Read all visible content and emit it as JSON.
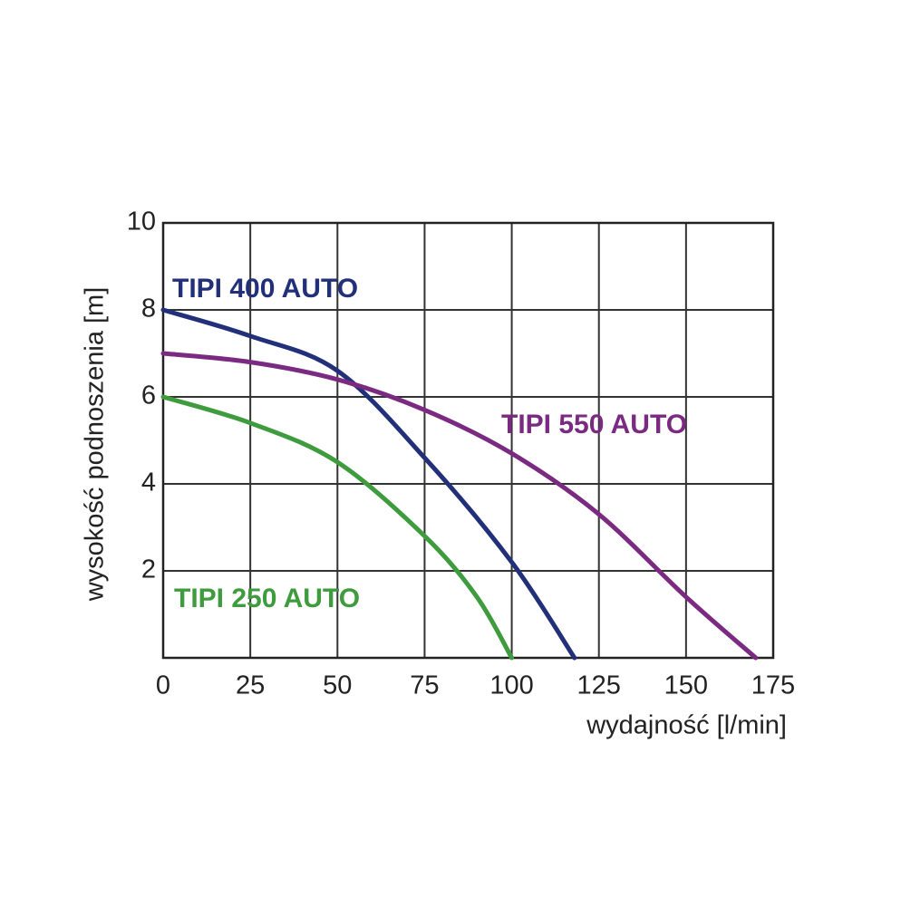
{
  "chart_data": {
    "type": "line",
    "xlabel": "wydajność  [l/min]",
    "ylabel": "wysokość podnoszenia [m]",
    "xlim": [
      0,
      175
    ],
    "xticks": [
      0,
      25,
      50,
      75,
      100,
      125,
      150,
      175
    ],
    "ylim": [
      0,
      10
    ],
    "yticks": [
      2,
      4,
      6,
      8,
      10
    ],
    "grid": true,
    "series": [
      {
        "name": "TIPI 400 AUTO",
        "color": "#22307a",
        "x": [
          0,
          25,
          50,
          75,
          100,
          118
        ],
        "values": [
          8,
          7.4,
          6.6,
          4.6,
          2.2,
          0
        ]
      },
      {
        "name": "TIPI 550 AUTO",
        "color": "#7b2a82",
        "x": [
          0,
          25,
          50,
          75,
          100,
          125,
          150,
          170
        ],
        "values": [
          7,
          6.8,
          6.4,
          5.7,
          4.7,
          3.3,
          1.4,
          0
        ]
      },
      {
        "name": "TIPI 250 AUTO",
        "color": "#3e9b3e",
        "x": [
          0,
          25,
          50,
          75,
          90,
          100
        ],
        "values": [
          6,
          5.4,
          4.5,
          2.8,
          1.4,
          0
        ]
      }
    ]
  }
}
